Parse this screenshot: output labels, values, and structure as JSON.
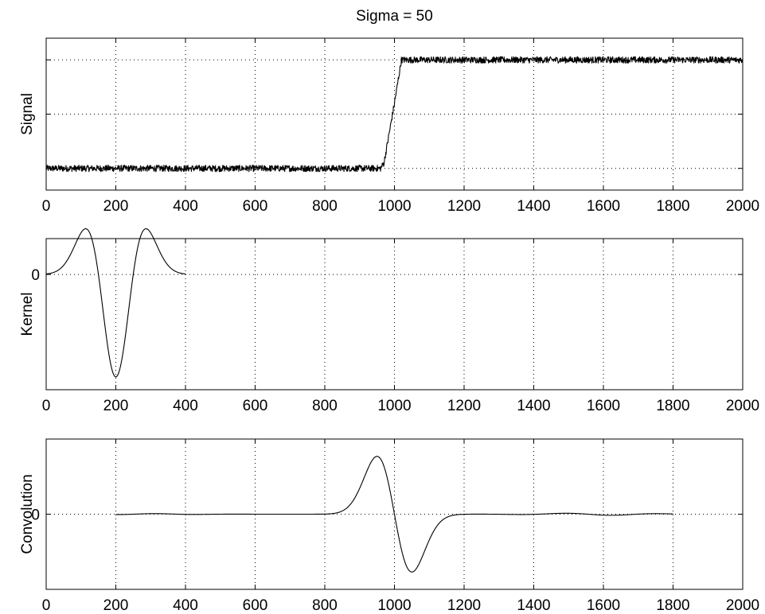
{
  "title": "Sigma = 50",
  "chart_data": [
    {
      "type": "line",
      "ylabel": "Signal",
      "xlim": [
        0,
        2000
      ],
      "x_ticks": [
        "0",
        "200",
        "400",
        "600",
        "800",
        "1000",
        "1200",
        "1400",
        "1600",
        "1800",
        "2000"
      ],
      "y_ticks": [],
      "grid": true,
      "series": [
        {
          "x": [
            0,
            960,
            970,
            1000,
            1020,
            2000
          ],
          "y": [
            0,
            0,
            0.05,
            0.6,
            1,
            1
          ],
          "noise": "small random fluctuation around low level (0–970) and high level (1020–2000)"
        }
      ]
    },
    {
      "type": "line",
      "ylabel": "Kernel",
      "xlim": [
        0,
        2000
      ],
      "x_ticks": [
        "0",
        "200",
        "400",
        "600",
        "800",
        "1000",
        "1200",
        "1400",
        "1600",
        "1800",
        "2000"
      ],
      "y_ticks": [
        "0"
      ],
      "grid": true,
      "series": [
        {
          "x": [
            0,
            25,
            50,
            75,
            100,
            113,
            125,
            150,
            175,
            200,
            225,
            250,
            275,
            287,
            300,
            325,
            350,
            375,
            400
          ],
          "y": [
            0.0003,
            0.016,
            0.12,
            0.34,
            0.45,
            0.46,
            0.42,
            0.02,
            -1.23,
            -2.0,
            -1.23,
            0.02,
            0.42,
            0.46,
            0.45,
            0.34,
            0.12,
            0.016,
            0.0003
          ]
        }
      ]
    },
    {
      "type": "line",
      "ylabel": "Convolution",
      "xlim": [
        0,
        2000
      ],
      "x_ticks": [
        "0",
        "200",
        "400",
        "600",
        "800",
        "1000",
        "1200",
        "1400",
        "1600",
        "1800",
        "2000"
      ],
      "y_ticks": [
        "0"
      ],
      "grid": true,
      "series": [
        {
          "x": [
            200,
            280,
            400,
            600,
            800,
            850,
            900,
            930,
            950,
            970,
            1000,
            1030,
            1050,
            1070,
            1100,
            1150,
            1200,
            1300,
            1500,
            1580,
            1670,
            1800
          ],
          "y": [
            -0.02,
            0.01,
            0,
            0,
            0,
            0.12,
            0.55,
            0.92,
            1.0,
            0.92,
            0,
            -0.92,
            -1.0,
            -0.92,
            -0.55,
            -0.12,
            0,
            0,
            0.03,
            -0.03,
            0.03,
            -0.01
          ]
        }
      ]
    }
  ]
}
